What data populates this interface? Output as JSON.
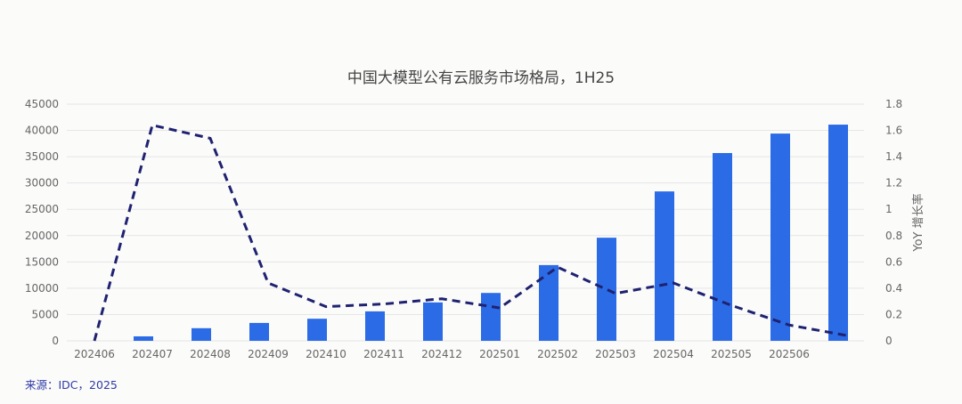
{
  "chart_data": {
    "type": "bar+line",
    "title": "中国大模型公有云服务市场格局，1H25",
    "categories": [
      "202406",
      "202407",
      "202408",
      "202409",
      "202410",
      "202411",
      "202412",
      "202501",
      "202502",
      "202503",
      "202504",
      "202505",
      "202506",
      ""
    ],
    "series": [
      {
        "type": "bar",
        "axis": "left",
        "color": "#2b6be6",
        "values": [
          0,
          850,
          2400,
          3400,
          4200,
          5600,
          7300,
          9100,
          14400,
          19600,
          28400,
          35700,
          39400,
          41100
        ]
      },
      {
        "type": "line",
        "axis": "right",
        "style": "dashed",
        "color": "#1f2270",
        "values": [
          0,
          1.64,
          1.54,
          0.44,
          0.26,
          0.28,
          0.32,
          0.25,
          0.56,
          0.36,
          0.44,
          0.27,
          0.12,
          0.04
        ]
      }
    ],
    "y_left": {
      "ylim": [
        0,
        45000
      ],
      "ticks": [
        0,
        5000,
        10000,
        15000,
        20000,
        25000,
        30000,
        35000,
        40000,
        45000
      ],
      "label": ""
    },
    "y_right": {
      "ylim": [
        0,
        1.8
      ],
      "ticks": [
        "0",
        "0.2",
        "0.4",
        "0.6",
        "0.8",
        "1",
        "1.2",
        "1.4",
        "1.6",
        "1.8"
      ],
      "label": "YoY 增长率"
    },
    "grid": true,
    "source": "来源：IDC，2025"
  }
}
